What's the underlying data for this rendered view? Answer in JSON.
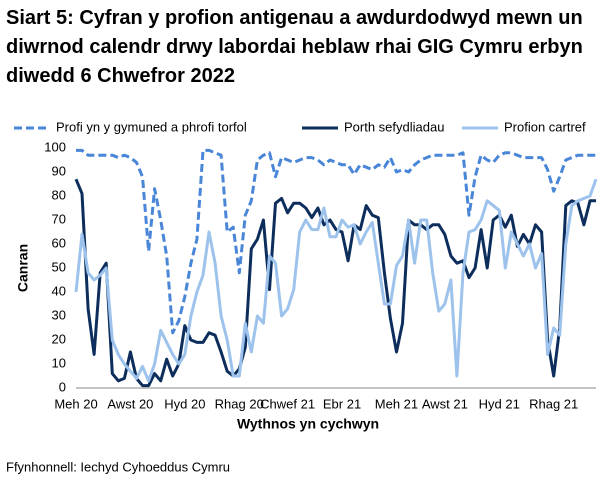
{
  "chart_data": {
    "type": "line",
    "title": "Siart 5: Cyfran y profion antigenau a awdurdodwyd mewn un diwrnod calendr drwy labordai heblaw rhai GIG Cymru erbyn diwedd 6 Chwefror 2022",
    "x_label": "Wythnos yn cychwyn",
    "y_label": "Canran",
    "source": "Ffynhonnell: Iechyd Cyhoeddus Cymru",
    "categories": [
      "Meh 20",
      null,
      null,
      null,
      null,
      null,
      null,
      null,
      null,
      "Awst 20",
      null,
      null,
      null,
      null,
      null,
      null,
      null,
      null,
      "Hyd 20",
      null,
      null,
      null,
      null,
      null,
      null,
      null,
      null,
      "Rhag 20",
      null,
      null,
      null,
      null,
      null,
      null,
      null,
      "Chwef 21",
      null,
      null,
      null,
      null,
      null,
      null,
      null,
      null,
      "Ebr 21",
      null,
      null,
      null,
      null,
      null,
      null,
      null,
      null,
      "Meh 21",
      null,
      null,
      null,
      null,
      null,
      null,
      null,
      "Awst 21",
      null,
      null,
      null,
      null,
      null,
      null,
      null,
      null,
      "Hyd 21",
      null,
      null,
      null,
      null,
      null,
      null,
      null,
      null,
      "Rhag 21",
      null,
      null,
      null,
      null,
      null,
      null,
      null
    ],
    "series": [
      {
        "name": "Profi yn y gymuned a phrofi torfol",
        "color": "#4a86d8",
        "dashed": true,
        "values": [
          99,
          99,
          97,
          97,
          97,
          97,
          97,
          96,
          97,
          96,
          94,
          88,
          57,
          83,
          70,
          55,
          23,
          28,
          38,
          52,
          62,
          99,
          99,
          98,
          97,
          65,
          67,
          48,
          72,
          78,
          95,
          97,
          98,
          88,
          96,
          95,
          94,
          95,
          96,
          96,
          95,
          93,
          95,
          94,
          93,
          93,
          89,
          93,
          92,
          91,
          93,
          92,
          96,
          90,
          91,
          90,
          93,
          95,
          96,
          97,
          97,
          97,
          97,
          97,
          98,
          72,
          88,
          97,
          95,
          94,
          97,
          98,
          98,
          97,
          96,
          96,
          96,
          96,
          91,
          82,
          88,
          95,
          96,
          97,
          97,
          97,
          97
        ]
      },
      {
        "name": "Porth sefydliadau",
        "color": "#0d2e5c",
        "dashed": false,
        "values": [
          87,
          81,
          33,
          14,
          48,
          52,
          6,
          3,
          4,
          15,
          4,
          1,
          1,
          6,
          3,
          12,
          5,
          10,
          26,
          20,
          19,
          19,
          23,
          22,
          15,
          7,
          5,
          8,
          17,
          58,
          62,
          70,
          41,
          77,
          79,
          73,
          77,
          77,
          75,
          71,
          75,
          68,
          70,
          66,
          65,
          53,
          68,
          66,
          76,
          72,
          71,
          48,
          29,
          15,
          27,
          70,
          68,
          68,
          66,
          68,
          68,
          64,
          55,
          52,
          53,
          46,
          50,
          66,
          50,
          70,
          72,
          67,
          72,
          59,
          64,
          60,
          68,
          65,
          20,
          5,
          25,
          76,
          78,
          77,
          68,
          78,
          78
        ]
      },
      {
        "name": "Profion cartref",
        "color": "#9dc3ec",
        "dashed": false,
        "values": [
          40,
          64,
          48,
          45,
          47,
          50,
          20,
          14,
          10,
          7,
          4,
          9,
          3,
          10,
          24,
          19,
          14,
          10,
          14,
          30,
          40,
          47,
          65,
          52,
          30,
          20,
          5,
          5,
          27,
          15,
          30,
          27,
          55,
          52,
          30,
          33,
          41,
          65,
          70,
          66,
          66,
          75,
          63,
          63,
          70,
          67,
          68,
          60,
          65,
          69,
          52,
          35,
          35,
          51,
          55,
          70,
          52,
          70,
          70,
          48,
          32,
          35,
          45,
          5,
          48,
          65,
          66,
          70,
          78,
          76,
          74,
          50,
          65,
          60,
          55,
          60,
          50,
          56,
          14,
          25,
          22,
          60,
          76,
          78,
          79,
          80,
          87
        ]
      }
    ],
    "ylim": [
      0,
      100
    ],
    "yticks": [
      0,
      10,
      20,
      30,
      40,
      50,
      60,
      70,
      80,
      90,
      100
    ],
    "grid": false,
    "legend": "top"
  }
}
